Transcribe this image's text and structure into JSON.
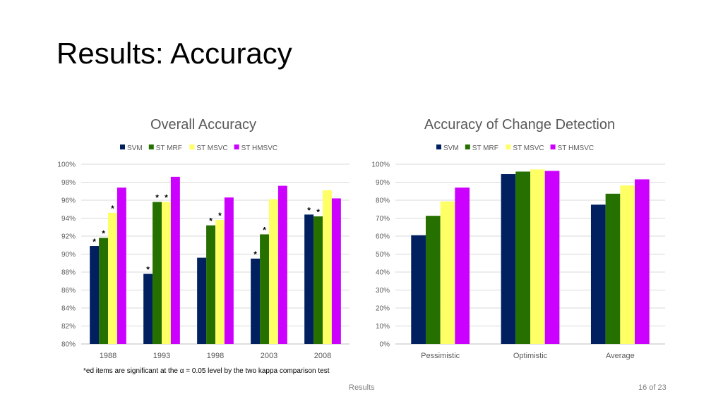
{
  "slide": {
    "title": "Results: Accuracy",
    "footnote": "*ed items are significant at the α = 0.05 level by the two kappa comparison test",
    "footer_center": "Results",
    "footer_page": "16 of 23"
  },
  "colors": {
    "SVM": "#002060",
    "ST MRF": "#267000",
    "ST MSVC": "#FFFF66",
    "ST HMSVC": "#CC00FF",
    "grid": "#D9D9D9",
    "text": "#595959"
  },
  "chart_data": [
    {
      "type": "bar",
      "title": "Overall Accuracy",
      "legend_position": "top",
      "categories": [
        "1988",
        "1993",
        "1998",
        "2003",
        "2008"
      ],
      "series": [
        {
          "name": "SVM",
          "values": [
            90.9,
            87.8,
            89.6,
            89.5,
            94.4
          ]
        },
        {
          "name": "ST MRF",
          "values": [
            91.8,
            95.8,
            93.2,
            92.2,
            94.2
          ]
        },
        {
          "name": "ST MSVC",
          "values": [
            94.6,
            95.8,
            93.8,
            96.1,
            97.1
          ]
        },
        {
          "name": "ST HMSVC",
          "values": [
            97.4,
            98.6,
            96.3,
            97.6,
            96.2
          ]
        }
      ],
      "significant": [
        [
          true,
          true,
          false,
          true,
          true
        ],
        [
          true,
          true,
          true,
          true,
          true
        ],
        [
          true,
          true,
          true,
          false,
          false
        ],
        [
          false,
          false,
          false,
          false,
          false
        ]
      ],
      "marker_symbol": "*",
      "ylim": [
        80,
        100
      ],
      "yticks": [
        "80%",
        "82%",
        "84%",
        "86%",
        "88%",
        "90%",
        "92%",
        "94%",
        "96%",
        "98%",
        "100%"
      ],
      "grid": true
    },
    {
      "type": "bar",
      "title": "Accuracy of Change Detection",
      "legend_position": "top",
      "categories": [
        "Pessimistic",
        "Optimistic",
        "Average"
      ],
      "series": [
        {
          "name": "SVM",
          "values": [
            60.5,
            94.5,
            77.5
          ]
        },
        {
          "name": "ST MRF",
          "values": [
            71.3,
            95.9,
            83.6
          ]
        },
        {
          "name": "ST MSVC",
          "values": [
            79.3,
            97.1,
            88.2
          ]
        },
        {
          "name": "ST HMSVC",
          "values": [
            87.0,
            96.3,
            91.6
          ]
        }
      ],
      "ylim": [
        0,
        100
      ],
      "yticks": [
        "0%",
        "10%",
        "20%",
        "30%",
        "40%",
        "50%",
        "60%",
        "70%",
        "80%",
        "90%",
        "100%"
      ],
      "grid": true
    }
  ]
}
